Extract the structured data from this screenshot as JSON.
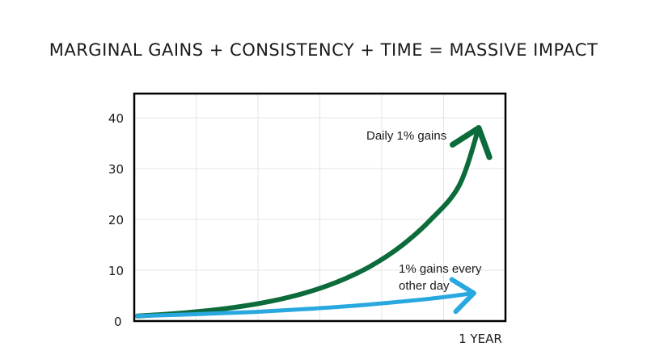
{
  "chart_data": {
    "type": "line",
    "title": "MARGINAL GAINS + CONSISTENCY + TIME = MASSIVE IMPACT",
    "xlabel": "1 YEAR",
    "ylabel": "",
    "xlim": [
      0,
      365
    ],
    "ylim": [
      0,
      45
    ],
    "yticks": [
      "0",
      "10",
      "20",
      "30",
      "40"
    ],
    "grid": true,
    "series": [
      {
        "name": "Daily 1% gains",
        "color": "#0b6b3a",
        "x": [
          0,
          30,
          60,
          90,
          120,
          150,
          180,
          210,
          240,
          270,
          300,
          330,
          350
        ],
        "y": [
          1,
          1.35,
          1.82,
          2.45,
          3.3,
          4.45,
          6.0,
          8.1,
          10.9,
          14.7,
          19.8,
          26.7,
          38
        ]
      },
      {
        "name": "1% gains every other day",
        "color": "#29a8e0",
        "x": [
          0,
          60,
          120,
          180,
          240,
          300,
          345
        ],
        "y": [
          1,
          1.35,
          1.8,
          2.45,
          3.3,
          4.4,
          5.5
        ]
      }
    ]
  }
}
